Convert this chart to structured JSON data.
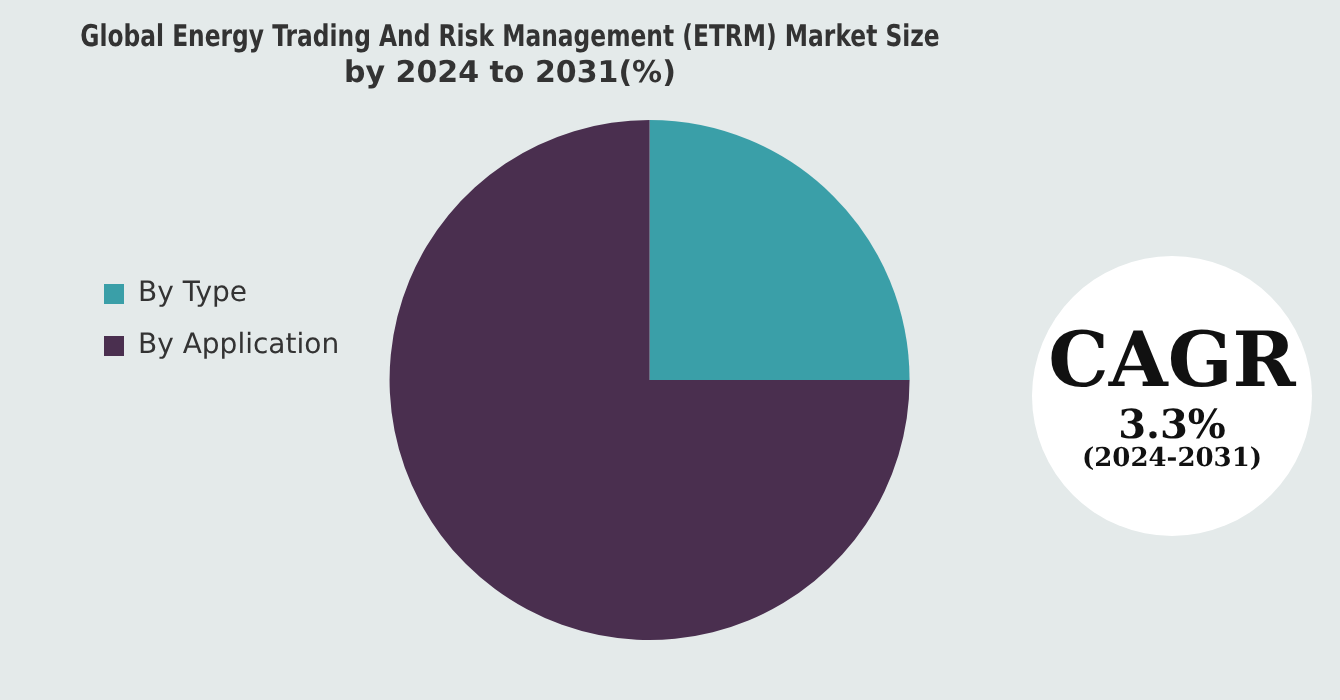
{
  "chart_data": {
    "type": "pie",
    "title": "Global Energy Trading And Risk Management (ETRM) Market Size by 2024 to 2031(%)",
    "categories": [
      "By Type",
      "By Application"
    ],
    "values": [
      25,
      75
    ],
    "colors": [
      "#3a9fa8",
      "#4a2f4f"
    ],
    "legend": "left",
    "annotations": [
      "CAGR",
      "3.3%",
      "(2024-2031)"
    ]
  }
}
